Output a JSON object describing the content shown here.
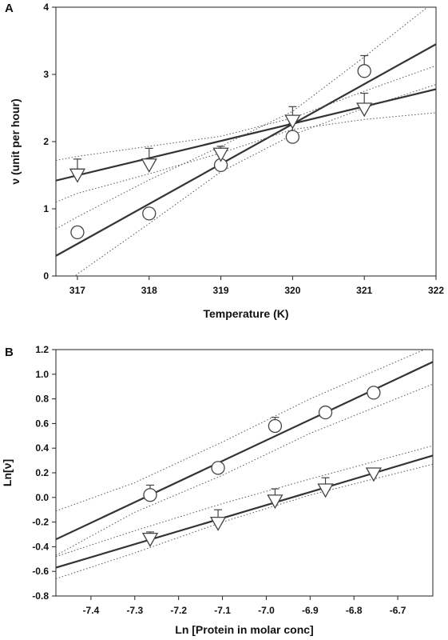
{
  "chart_data": [
    {
      "panel_label": "A",
      "type": "scatter",
      "xlabel": "Temperature (K)",
      "ylabel": "ν (unit per hour)",
      "xlim": [
        316.7,
        322
      ],
      "ylim": [
        0,
        4
      ],
      "xticks": [
        317,
        318,
        319,
        320,
        321,
        322
      ],
      "yticks": [
        0,
        1,
        2,
        3,
        4
      ],
      "grid": false,
      "series": [
        {
          "marker": "circle",
          "x": [
            317,
            318,
            319,
            320,
            321
          ],
          "y": [
            0.65,
            0.93,
            1.65,
            2.07,
            3.05
          ],
          "error": [
            0,
            0,
            0,
            0.2,
            0.23
          ],
          "fit": {
            "x": [
              316.7,
              322
            ],
            "y": [
              0.3,
              3.45
            ]
          },
          "ci_upper": {
            "x": [
              316.7,
              317,
              318,
              319,
              320,
              321,
              322
            ],
            "y": [
              0.7,
              0.88,
              1.43,
              1.93,
              2.45,
              3.26,
              4.1
            ]
          },
          "ci_lower": {
            "x": [
              316.7,
              317,
              318,
              319,
              320,
              321,
              322
            ],
            "y": [
              -0.3,
              0.03,
              0.78,
              1.55,
              2.1,
              2.5,
              2.85
            ]
          }
        },
        {
          "marker": "triangle-down",
          "x": [
            317,
            318,
            319,
            320,
            321
          ],
          "y": [
            1.52,
            1.67,
            1.83,
            2.32,
            2.5
          ],
          "error": [
            0.22,
            0.23,
            0.1,
            0.2,
            0.22
          ],
          "fit": {
            "x": [
              316.7,
              322
            ],
            "y": [
              1.42,
              2.78
            ]
          },
          "ci_upper": {
            "x": [
              316.7,
              317,
              318,
              319,
              320,
              321,
              322
            ],
            "y": [
              1.72,
              1.78,
              1.93,
              2.08,
              2.35,
              2.75,
              3.13
            ]
          },
          "ci_lower": {
            "x": [
              316.7,
              317,
              318,
              319,
              320,
              321,
              322
            ],
            "y": [
              1.1,
              1.23,
              1.52,
              1.83,
              2.18,
              2.33,
              2.43
            ]
          }
        }
      ]
    },
    {
      "panel_label": "B",
      "type": "scatter",
      "xlabel": "Ln [Protein in molar conc]",
      "ylabel": "Ln[ν]",
      "xlim": [
        -7.48,
        -6.62
      ],
      "ylim": [
        -0.8,
        1.2
      ],
      "xticks": [
        -7.4,
        -7.3,
        -7.2,
        -7.1,
        -7.0,
        -6.9,
        -6.8,
        -6.7
      ],
      "xtick_labels": [
        "-7.4",
        "-7.3",
        "-7.2",
        "-7.1",
        "-7.0",
        "-6.9",
        "-6.8",
        "-6.7"
      ],
      "yticks": [
        -0.8,
        -0.6,
        -0.4,
        -0.2,
        0.0,
        0.2,
        0.4,
        0.6,
        0.8,
        1.0,
        1.2
      ],
      "ytick_labels": [
        "-0.8",
        "-0.6",
        "-0.4",
        "-0.2",
        "0.0",
        "0.2",
        "0.4",
        "0.6",
        "0.8",
        "1.0",
        "1.2"
      ],
      "grid": false,
      "series": [
        {
          "marker": "circle",
          "x": [
            -7.265,
            -7.11,
            -6.98,
            -6.865,
            -6.755
          ],
          "y": [
            0.02,
            0.24,
            0.58,
            0.69,
            0.85
          ],
          "error": [
            0.08,
            0,
            0.07,
            0,
            0
          ],
          "fit": {
            "x": [
              -7.48,
              -6.62
            ],
            "y": [
              -0.34,
              1.1
            ]
          },
          "ci_upper": {
            "x": [
              -7.48,
              -7.3,
              -7.1,
              -6.9,
              -6.62
            ],
            "y": [
              -0.11,
              0.12,
              0.45,
              0.8,
              1.23
            ]
          },
          "ci_lower": {
            "x": [
              -7.48,
              -7.3,
              -7.1,
              -6.9,
              -6.62
            ],
            "y": [
              -0.47,
              -0.12,
              0.18,
              0.52,
              0.92
            ]
          }
        },
        {
          "marker": "triangle-down",
          "x": [
            -7.265,
            -7.11,
            -6.98,
            -6.865,
            -6.755
          ],
          "y": [
            -0.33,
            -0.2,
            -0.02,
            0.07,
            0.2
          ],
          "error": [
            0.05,
            0.1,
            0.09,
            0.09,
            0
          ],
          "fit": {
            "x": [
              -7.48,
              -6.62
            ],
            "y": [
              -0.57,
              0.34
            ]
          },
          "ci_upper": {
            "x": [
              -7.48,
              -7.3,
              -7.1,
              -6.9,
              -6.62
            ],
            "y": [
              -0.48,
              -0.27,
              -0.05,
              0.15,
              0.42
            ]
          },
          "ci_lower": {
            "x": [
              -7.48,
              -7.3,
              -7.1,
              -6.9,
              -6.62
            ],
            "y": [
              -0.66,
              -0.45,
              -0.2,
              0.02,
              0.27
            ]
          }
        }
      ]
    }
  ]
}
